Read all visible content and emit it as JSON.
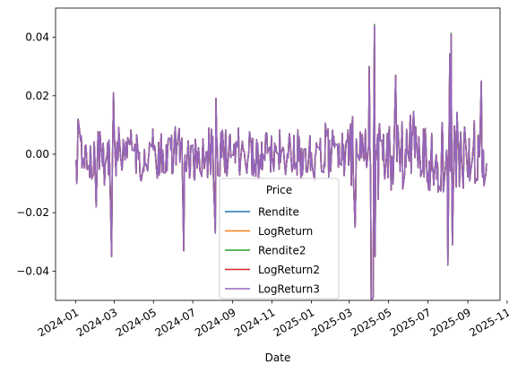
{
  "chart_data": {
    "type": "line",
    "xlabel": "Date",
    "ylabel": "",
    "x_range": [
      "2023-12-01",
      "2025-10-21"
    ],
    "ylim": [
      -0.05,
      0.05
    ],
    "x_ticks": [
      "2024-01",
      "2024-03",
      "2024-05",
      "2024-07",
      "2024-09",
      "2024-11",
      "2025-01",
      "2025-03",
      "2025-05",
      "2025-07",
      "2025-09",
      "2025-11"
    ],
    "y_ticks": [
      {
        "value": -0.04,
        "label": "−0.04"
      },
      {
        "value": -0.02,
        "label": "−0.02"
      },
      {
        "value": 0.0,
        "label": "0.00"
      },
      {
        "value": 0.02,
        "label": "0.02"
      },
      {
        "value": 0.04,
        "label": "0.04"
      }
    ],
    "legend": {
      "title": "Price",
      "position": "lower center"
    },
    "grid": false,
    "data_start": "2024-01-02",
    "data_end": "2025-09-30",
    "series": [
      {
        "name": "Rendite",
        "color": "#1f77b4"
      },
      {
        "name": "LogReturn",
        "color": "#ff7f0e"
      },
      {
        "name": "Rendite2",
        "color": "#2ca02c"
      },
      {
        "name": "LogReturn2",
        "color": "#d62728"
      },
      {
        "name": "LogReturn3",
        "color": "#9467bd"
      }
    ],
    "highlights": [
      {
        "date": "2024-01-03",
        "value": -0.01
      },
      {
        "date": "2024-01-05",
        "value": 0.012
      },
      {
        "date": "2024-02-02",
        "value": -0.018
      },
      {
        "date": "2024-02-26",
        "value": -0.035
      },
      {
        "date": "2024-02-29",
        "value": 0.021
      },
      {
        "date": "2024-06-17",
        "value": -0.033
      },
      {
        "date": "2024-08-05",
        "value": -0.027
      },
      {
        "date": "2024-08-06",
        "value": 0.019
      },
      {
        "date": "2025-03-10",
        "value": -0.025
      },
      {
        "date": "2025-04-01",
        "value": 0.03
      },
      {
        "date": "2025-04-04",
        "value": -0.05
      },
      {
        "date": "2025-04-07",
        "value": -0.049
      },
      {
        "date": "2025-04-09",
        "value": 0.044
      },
      {
        "date": "2025-04-10",
        "value": -0.035
      },
      {
        "date": "2025-05-12",
        "value": 0.027
      },
      {
        "date": "2025-08-01",
        "value": -0.038
      },
      {
        "date": "2025-08-04",
        "value": 0.034
      },
      {
        "date": "2025-08-06",
        "value": 0.041
      },
      {
        "date": "2025-08-08",
        "value": -0.031
      },
      {
        "date": "2025-09-22",
        "value": 0.025
      }
    ]
  }
}
